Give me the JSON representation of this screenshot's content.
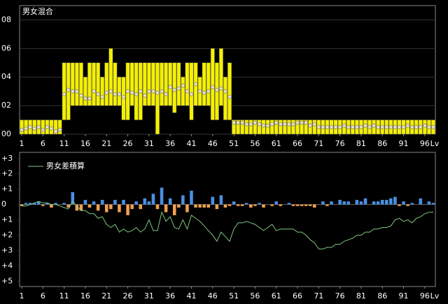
{
  "chart_data": [
    {
      "type": "range-bar",
      "title": "男女混合",
      "x": [
        1,
        2,
        3,
        4,
        5,
        6,
        7,
        8,
        9,
        10,
        11,
        12,
        13,
        14,
        15,
        16,
        17,
        18,
        19,
        20,
        21,
        22,
        23,
        24,
        25,
        26,
        27,
        28,
        29,
        30,
        31,
        32,
        33,
        34,
        35,
        36,
        37,
        38,
        39,
        40,
        41,
        42,
        43,
        44,
        45,
        46,
        47,
        48,
        49,
        50,
        51,
        52,
        53,
        54,
        55,
        56,
        57,
        58,
        59,
        60,
        61,
        62,
        63,
        64,
        65,
        66,
        67,
        68,
        69,
        70,
        71,
        72,
        73,
        74,
        75,
        76,
        77,
        78,
        79,
        80,
        81,
        82,
        83,
        84,
        85,
        86,
        87,
        88,
        89,
        90,
        91,
        92,
        93,
        94,
        95,
        96,
        97,
        98
      ],
      "low": [
        0,
        0,
        0,
        0,
        0,
        0,
        0,
        0,
        0,
        0,
        1,
        1,
        2,
        2,
        2,
        2,
        2,
        2,
        2,
        2,
        2,
        2,
        2,
        2,
        1,
        1,
        2,
        1,
        1,
        2,
        2,
        2,
        0,
        2,
        2,
        2,
        1.5,
        2,
        2,
        2,
        1,
        2,
        2,
        2,
        2,
        1,
        1,
        2,
        1,
        1,
        0,
        0,
        0,
        0,
        0,
        0,
        0,
        0,
        0,
        0,
        0,
        0,
        0,
        0,
        0,
        0,
        0,
        0,
        0,
        0,
        0,
        0,
        0,
        0,
        0,
        0,
        0,
        0,
        0,
        0,
        0,
        0,
        0,
        0,
        0,
        0,
        0,
        0,
        0,
        0,
        0,
        0,
        0,
        0,
        0,
        0,
        0,
        0
      ],
      "high": [
        1,
        1,
        1,
        1,
        1,
        1,
        1,
        1,
        1,
        1,
        5,
        5,
        5,
        5,
        5,
        4,
        5,
        5,
        5,
        4,
        5,
        6,
        5,
        4,
        4,
        5,
        5,
        5,
        5,
        5,
        5,
        5,
        5,
        5,
        5,
        5,
        5,
        5,
        4,
        5,
        5,
        5,
        4,
        5,
        5,
        6,
        5,
        6,
        4,
        5,
        1,
        1,
        1,
        1,
        1,
        1,
        1,
        1,
        1,
        1,
        1,
        1,
        1,
        1,
        1,
        1,
        1,
        1,
        1,
        1,
        1,
        1,
        1,
        1,
        1,
        1,
        1,
        1,
        1,
        1,
        1,
        1,
        1,
        1,
        1,
        1,
        1,
        1,
        1,
        1,
        1,
        1,
        1,
        1,
        1,
        1,
        1,
        1
      ],
      "mean": [
        0.3,
        0.4,
        0.5,
        0.4,
        0.5,
        0.3,
        0.5,
        0.4,
        0.2,
        0.3,
        2.8,
        3.1,
        3.0,
        3.0,
        2.7,
        2.5,
        2.5,
        3.0,
        2.8,
        2.6,
        2.9,
        3.0,
        2.8,
        2.8,
        2.6,
        3.0,
        2.9,
        2.8,
        3.0,
        2.7,
        3.0,
        3.0,
        2.9,
        3.0,
        2.8,
        3.3,
        3.1,
        3.2,
        3.4,
        3.0,
        2.8,
        3.5,
        3.0,
        2.9,
        3.0,
        3.3,
        3.1,
        3.2,
        3.0,
        2.6,
        0.8,
        0.8,
        0.8,
        0.7,
        0.7,
        0.8,
        0.7,
        0.6,
        0.6,
        0.7,
        0.8,
        0.7,
        0.7,
        0.7,
        0.7,
        0.8,
        0.8,
        0.8,
        0.6,
        0.7,
        0.5,
        0.5,
        0.5,
        0.5,
        0.5,
        0.5,
        0.6,
        0.5,
        0.5,
        0.5,
        0.5,
        0.6,
        0.5,
        0.6,
        0.5,
        0.5,
        0.5,
        0.5,
        0.5,
        0.5,
        0.5,
        0.6,
        0.5,
        0.5,
        0.5,
        0.6,
        0.5,
        0.5
      ],
      "color": "#f5f000",
      "marker_color": "#f0e6c8",
      "xlim": [
        0.5,
        98.5
      ],
      "xticks": [
        1,
        6,
        11,
        16,
        21,
        26,
        31,
        36,
        41,
        46,
        51,
        56,
        61,
        66,
        71,
        76,
        81,
        86,
        91,
        96
      ],
      "x_label": "Lv",
      "ylim": [
        0,
        9
      ],
      "yticks": [
        {
          "value": 0,
          "label": "00"
        },
        {
          "value": 2,
          "label": "02"
        },
        {
          "value": 4,
          "label": "04"
        },
        {
          "value": 6,
          "label": "06"
        },
        {
          "value": 8,
          "label": "08"
        }
      ],
      "grid": true
    },
    {
      "type": "bar-line",
      "x": [
        1,
        2,
        3,
        4,
        5,
        6,
        7,
        8,
        9,
        10,
        11,
        12,
        13,
        14,
        15,
        16,
        17,
        18,
        19,
        20,
        21,
        22,
        23,
        24,
        25,
        26,
        27,
        28,
        29,
        30,
        31,
        32,
        33,
        34,
        35,
        36,
        37,
        38,
        39,
        40,
        41,
        42,
        43,
        44,
        45,
        46,
        47,
        48,
        49,
        50,
        51,
        52,
        53,
        54,
        55,
        56,
        57,
        58,
        59,
        60,
        61,
        62,
        63,
        64,
        65,
        66,
        67,
        68,
        69,
        70,
        71,
        72,
        73,
        74,
        75,
        76,
        77,
        78,
        79,
        80,
        81,
        82,
        83,
        84,
        85,
        86,
        87,
        88,
        89,
        90,
        91,
        92,
        93,
        94,
        95,
        96,
        97,
        98
      ],
      "series": [
        {
          "color_positive": "#4a90e2",
          "color_negative": "#f0a050",
          "values": [
            -0.1,
            0.1,
            0.1,
            0.1,
            0.2,
            -0.1,
            0.1,
            -0.2,
            0.1,
            0,
            0.1,
            -0.2,
            0.8,
            -0.4,
            -0.4,
            0.3,
            -0.2,
            0.2,
            -0.4,
            0.3,
            -0.5,
            -0.3,
            0.3,
            -0.5,
            0.3,
            -0.7,
            -0.3,
            0.2,
            -0.3,
            0.4,
            0.2,
            0.7,
            -0.3,
            1.1,
            -0.5,
            0.4,
            -0.7,
            -0.2,
            0.6,
            -0.5,
            0.9,
            -0.2,
            -0.2,
            -0.2,
            -0.2,
            0.5,
            -0.3,
            0.6,
            -0.2,
            -0.1,
            0.2,
            -0.1,
            -0.1,
            0.1,
            -0.2,
            -0.1,
            0.1,
            -0.2,
            0,
            -0.1,
            0.2,
            -0.1,
            0,
            0.1,
            -0.1,
            -0.1,
            -0.1,
            -0.1,
            -0.1,
            -0.2,
            0,
            0.2,
            -0.1,
            0.2,
            0,
            0.3,
            0.2,
            0.2,
            0,
            0.3,
            0.2,
            0.4,
            0,
            0.2,
            0.2,
            0.3,
            0.3,
            0.4,
            0.5,
            -0.1,
            0.2,
            -0.1,
            0.1,
            0,
            0.4,
            0,
            0.2,
            0.1
          ]
        },
        {
          "name": "男女差積算",
          "color": "#7fc77f",
          "values": [
            -0.1,
            -0.1,
            0,
            0.1,
            0.2,
            0.1,
            0.1,
            0,
            0,
            -0.1,
            -0.2,
            -0.3,
            0.2,
            -0.1,
            -0.4,
            -0.4,
            -0.6,
            -0.6,
            -0.9,
            -0.8,
            -1.3,
            -1.5,
            -1.3,
            -1.8,
            -1.6,
            -1.8,
            -1.7,
            -1.5,
            -1.8,
            -1.6,
            -1.0,
            -1.7,
            -1.7,
            -0.5,
            -1.1,
            -0.8,
            -1.5,
            -1.6,
            -1.0,
            -1.6,
            -0.7,
            -0.9,
            -1.1,
            -1.4,
            -1.7,
            -2.0,
            -2.4,
            -1.8,
            -2.1,
            -2.4,
            -1.6,
            -1.2,
            -1.2,
            -1.1,
            -1.2,
            -1.3,
            -1.5,
            -1.7,
            -1.5,
            -1.3,
            -1.7,
            -1.6,
            -1.6,
            -1.6,
            -1.6,
            -1.8,
            -1.8,
            -2.0,
            -2.3,
            -2.5,
            -2.9,
            -2.9,
            -2.8,
            -2.8,
            -2.6,
            -2.6,
            -2.4,
            -2.3,
            -2.2,
            -2.0,
            -2.0,
            -1.8,
            -1.8,
            -1.6,
            -1.6,
            -1.5,
            -1.5,
            -1.4,
            -1.0,
            -0.9,
            -1.1,
            -1.0,
            -1.2,
            -0.9,
            -0.8,
            -0.6,
            -0.5,
            -0.5
          ]
        }
      ],
      "xlim": [
        0.5,
        98.5
      ],
      "xticks": [
        1,
        6,
        11,
        16,
        21,
        26,
        31,
        36,
        41,
        46,
        51,
        56,
        61,
        66,
        71,
        76,
        81,
        86,
        91,
        96
      ],
      "x_label": "Lv",
      "ylim": [
        -5.35,
        3.4
      ],
      "yticks": [
        {
          "value": 3,
          "label": "+3"
        },
        {
          "value": 2,
          "label": "+2"
        },
        {
          "value": 1,
          "label": "+1"
        },
        0,
        {
          "value": -1,
          "label": "+1"
        },
        {
          "value": -2,
          "label": "+2"
        },
        {
          "value": -3,
          "label": "+3"
        },
        {
          "value": -4,
          "label": "+4"
        },
        {
          "value": -5,
          "label": "+5"
        }
      ],
      "grid": false
    }
  ]
}
